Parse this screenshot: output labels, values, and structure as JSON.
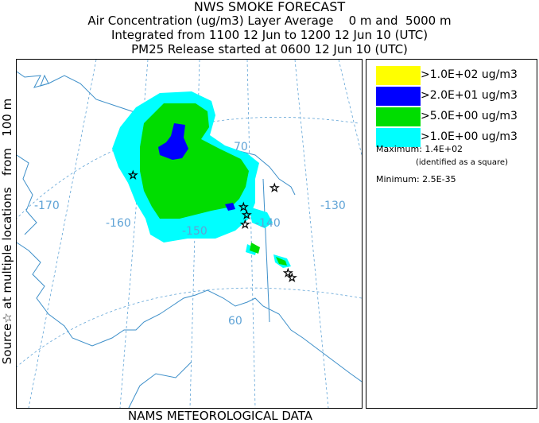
{
  "header": {
    "title": "NWS SMOKE FORECAST",
    "line2": "Air Concentration (ug/m3) Layer Average    0 m and  5000 m",
    "line3": "Integrated from 1100 12 Jun to 1200 12 Jun 10 (UTC)",
    "line4": "PM25 Release started at 0600 12 Jun 10 (UTC)"
  },
  "side_label": "Source☆ at multiple locations   from   100 m",
  "footer": "NAMS METEOROLOGICAL DATA",
  "map": {
    "lon_labels": [
      "-170",
      "-160",
      "-150",
      "-140",
      "-130"
    ],
    "lat_labels": [
      "70",
      "60"
    ],
    "colors": {
      "land_line": "#3d8fc9",
      "grid_line": "#5fa3d6"
    }
  },
  "legend": {
    "items": [
      {
        "label": ">1.0E+02 ug/m3",
        "color": "#ffff00"
      },
      {
        "label": ">2.0E+01 ug/m3",
        "color": "#0000ff"
      },
      {
        "label": ">5.0E+00 ug/m3",
        "color": "#00dd00"
      },
      {
        "label": ">1.0E+00 ug/m3",
        "color": "#00ffff"
      }
    ],
    "maximum": "Maximum: 1.4E+02",
    "maximum_note": "(identified as a square)",
    "minimum": "Minimum: 2.5E-35"
  }
}
